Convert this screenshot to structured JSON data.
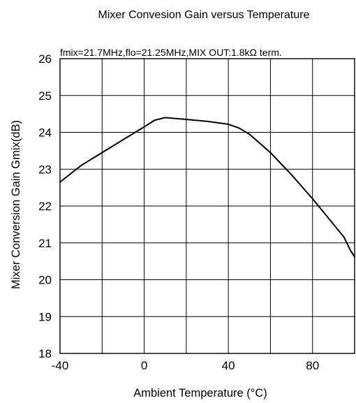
{
  "chart_data": {
    "type": "line",
    "title": "Mixer Convesion Gain versus Temperature",
    "annotation": "fmix=21.7MHz,flo=21.25MHz,MIX OUT:1.8kΩ term.",
    "xlabel": "Ambient Temperature (°C)",
    "ylabel": "Mixer Conversion Gain Gmix(dB)",
    "xlim": [
      -40,
      100
    ],
    "ylim": [
      18,
      26
    ],
    "xticks": [
      -40,
      0,
      40,
      80
    ],
    "xtick_labels": [
      "-40",
      "0",
      "40",
      "80"
    ],
    "x_gridlines": [
      -40,
      -20,
      0,
      20,
      40,
      60,
      80,
      100
    ],
    "yticks": [
      18,
      19,
      20,
      21,
      22,
      23,
      24,
      25,
      26
    ],
    "ytick_labels": [
      "18",
      "19",
      "20",
      "21",
      "22",
      "23",
      "24",
      "25",
      "26"
    ],
    "grid": true,
    "series": [
      {
        "x": [
          -40,
          -30,
          -20,
          -10,
          0,
          5,
          10,
          20,
          30,
          40,
          45,
          50,
          60,
          70,
          80,
          85,
          90,
          95,
          98,
          100
        ],
        "y": [
          22.65,
          23.1,
          23.45,
          23.8,
          24.15,
          24.33,
          24.4,
          24.35,
          24.3,
          24.22,
          24.12,
          23.95,
          23.45,
          22.85,
          22.2,
          21.85,
          21.5,
          21.15,
          20.8,
          20.62
        ]
      }
    ]
  }
}
